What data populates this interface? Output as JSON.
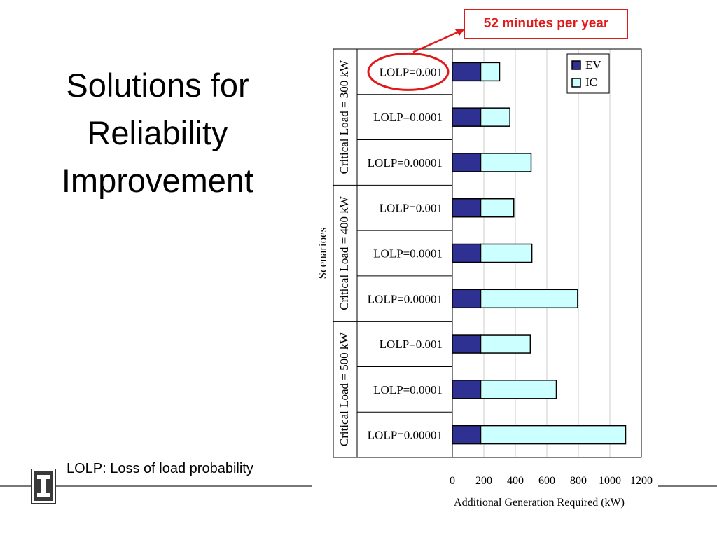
{
  "slide": {
    "title_lines": [
      "Solutions for",
      "Reliability",
      "Improvement"
    ],
    "footnote": "LOLP: Loss of load probability",
    "callout": "52 minutes per year",
    "logo_letter": "I"
  },
  "colors": {
    "ev": "#2e3192",
    "ic": "#ccffff",
    "callout": "#e01a1a"
  },
  "chart_data": {
    "type": "bar",
    "orientation": "horizontal",
    "stacked": true,
    "xlabel": "Additional Generation Required (kW)",
    "ylabel": "Scenarioes",
    "xlim": [
      0,
      1200
    ],
    "xticks": [
      "0",
      "200",
      "400",
      "600",
      "800",
      "1000",
      "1200"
    ],
    "grid": true,
    "legend": {
      "position": "top-right",
      "entries": [
        "EV",
        "IC"
      ]
    },
    "groups": [
      {
        "label": "Critical Load = 300 kW",
        "categories": [
          "LOLP=0.001",
          "LOLP=0.0001",
          "LOLP=0.00001"
        ]
      },
      {
        "label": "Critical Load = 400 kW",
        "categories": [
          "LOLP=0.001",
          "LOLP=0.0001",
          "LOLP=0.00001"
        ]
      },
      {
        "label": "Critical Load = 500 kW",
        "categories": [
          "LOLP=0.001",
          "LOLP=0.0001",
          "LOLP=0.00001"
        ]
      }
    ],
    "series": [
      {
        "name": "EV",
        "values": [
          180,
          180,
          180,
          180,
          180,
          180,
          180,
          180,
          180
        ]
      },
      {
        "name": "IC",
        "values": [
          120,
          185,
          320,
          210,
          325,
          615,
          315,
          480,
          920
        ]
      }
    ],
    "annotation": {
      "target_index": 0,
      "text": "52 minutes per year"
    }
  }
}
